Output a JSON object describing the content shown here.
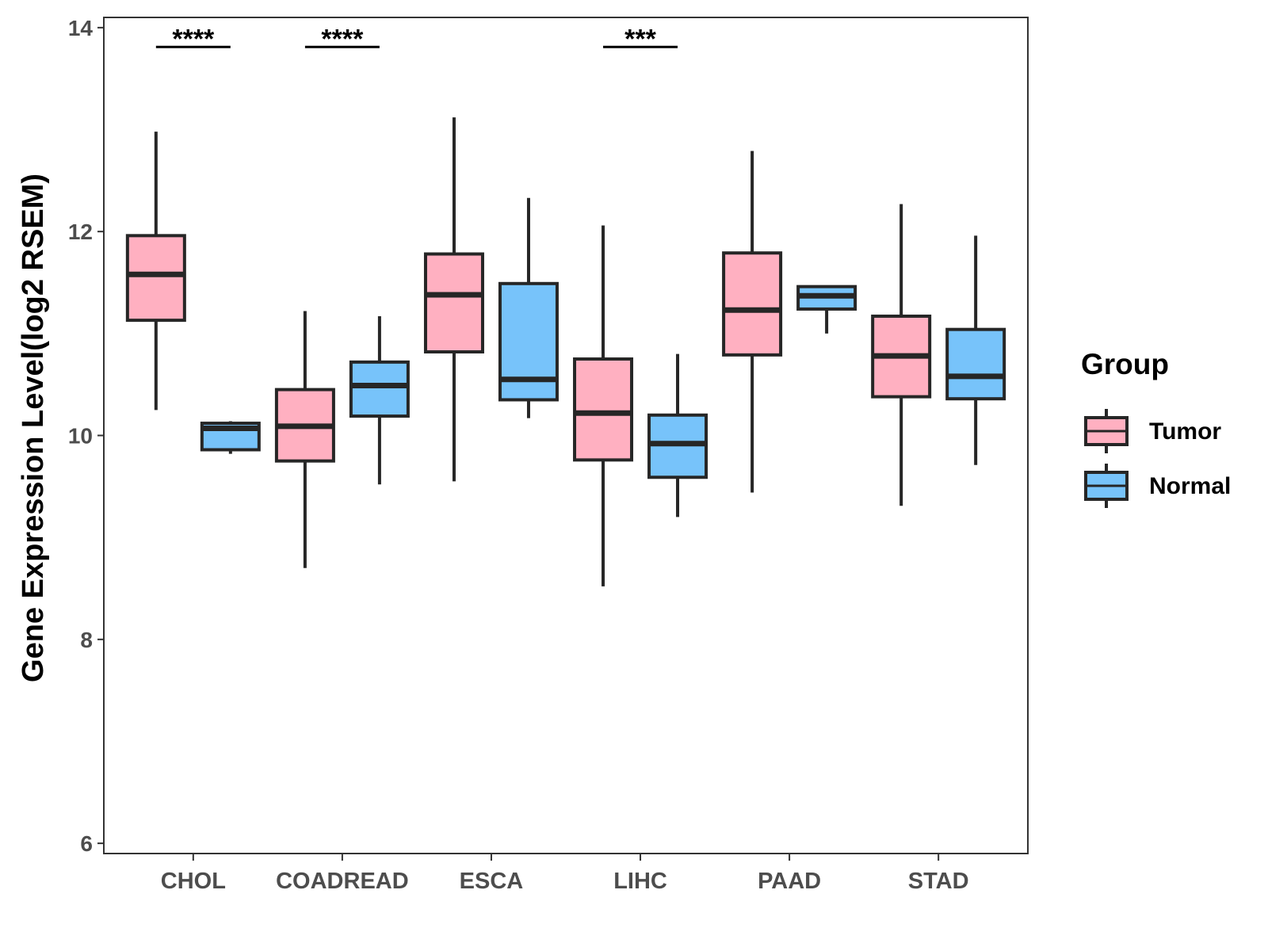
{
  "chart_data": {
    "type": "boxplot",
    "ylabel": "Gene Expression Level(log2 RSEM)",
    "xlabel": "",
    "ylim": [
      5.9,
      14.1
    ],
    "yticks": [
      6,
      8,
      10,
      12,
      14
    ],
    "categories": [
      "CHOL",
      "COADREAD",
      "ESCA",
      "LIHC",
      "PAAD",
      "STAD"
    ],
    "legend": {
      "title": "Group",
      "position": "right",
      "entries": [
        {
          "name": "Tumor",
          "color": "#FFB0C1"
        },
        {
          "name": "Normal",
          "color": "#77C3FA"
        }
      ]
    },
    "series": [
      {
        "name": "Tumor",
        "color": "#FFB0C1",
        "boxes": [
          {
            "min": 10.25,
            "q1": 11.13,
            "median": 11.58,
            "q3": 11.96,
            "max": 12.98
          },
          {
            "min": 8.7,
            "q1": 9.75,
            "median": 10.09,
            "q3": 10.45,
            "max": 11.22
          },
          {
            "min": 9.55,
            "q1": 10.82,
            "median": 11.38,
            "q3": 11.78,
            "max": 13.12
          },
          {
            "min": 8.52,
            "q1": 9.76,
            "median": 10.22,
            "q3": 10.75,
            "max": 12.06
          },
          {
            "min": 9.44,
            "q1": 10.79,
            "median": 11.23,
            "q3": 11.79,
            "max": 12.79
          },
          {
            "min": 9.31,
            "q1": 10.38,
            "median": 10.78,
            "q3": 11.17,
            "max": 12.27
          }
        ]
      },
      {
        "name": "Normal",
        "color": "#77C3FA",
        "boxes": [
          {
            "min": 9.82,
            "q1": 9.86,
            "median": 10.07,
            "q3": 10.12,
            "max": 10.14
          },
          {
            "min": 9.52,
            "q1": 10.19,
            "median": 10.49,
            "q3": 10.72,
            "max": 11.17
          },
          {
            "min": 10.17,
            "q1": 10.35,
            "median": 10.55,
            "q3": 11.49,
            "max": 12.33
          },
          {
            "min": 9.2,
            "q1": 9.59,
            "median": 9.92,
            "q3": 10.2,
            "max": 10.8
          },
          {
            "min": 11.0,
            "q1": 11.24,
            "median": 11.37,
            "q3": 11.46,
            "max": 11.46
          },
          {
            "min": 9.71,
            "q1": 10.36,
            "median": 10.58,
            "q3": 11.04,
            "max": 11.96
          }
        ]
      }
    ],
    "significance": [
      {
        "category": "CHOL",
        "label": "****",
        "y": 13.81
      },
      {
        "category": "COADREAD",
        "label": "****",
        "y": 13.81
      },
      {
        "category": "LIHC",
        "label": "***",
        "y": 13.81
      }
    ]
  }
}
